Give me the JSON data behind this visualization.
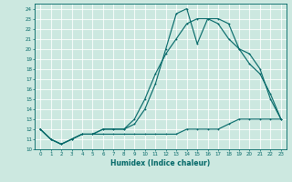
{
  "xlabel": "Humidex (Indice chaleur)",
  "ylabel": "",
  "bg_color": "#cce8e0",
  "grid_color": "#ffffff",
  "line_color": "#006666",
  "xlim": [
    -0.5,
    23.5
  ],
  "ylim": [
    10,
    24.5
  ],
  "yticks": [
    10,
    11,
    12,
    13,
    14,
    15,
    16,
    17,
    18,
    19,
    20,
    21,
    22,
    23,
    24
  ],
  "xticks": [
    0,
    1,
    2,
    3,
    4,
    5,
    6,
    7,
    8,
    9,
    10,
    11,
    12,
    13,
    14,
    15,
    16,
    17,
    18,
    19,
    20,
    21,
    22,
    23
  ],
  "series1_x": [
    0,
    1,
    2,
    3,
    4,
    5,
    6,
    7,
    8,
    9,
    10,
    11,
    12,
    13,
    14,
    15,
    16,
    17,
    18,
    19,
    20,
    21,
    22,
    23
  ],
  "series1_y": [
    12.0,
    11.0,
    10.5,
    11.0,
    11.5,
    11.5,
    11.5,
    11.5,
    11.5,
    11.5,
    11.5,
    11.5,
    11.5,
    11.5,
    12.0,
    12.0,
    12.0,
    12.0,
    12.5,
    13.0,
    13.0,
    13.0,
    13.0,
    13.0
  ],
  "series2_x": [
    0,
    1,
    2,
    3,
    4,
    5,
    6,
    7,
    8,
    9,
    10,
    11,
    12,
    13,
    14,
    15,
    16,
    17,
    18,
    19,
    20,
    21,
    22,
    23
  ],
  "series2_y": [
    12.0,
    11.0,
    10.5,
    11.0,
    11.5,
    11.5,
    12.0,
    12.0,
    12.0,
    12.5,
    14.0,
    16.5,
    20.0,
    23.5,
    24.0,
    20.5,
    23.0,
    23.0,
    22.5,
    20.0,
    19.5,
    18.0,
    15.0,
    13.0
  ],
  "series3_x": [
    0,
    1,
    2,
    3,
    4,
    5,
    6,
    7,
    8,
    9,
    10,
    11,
    12,
    13,
    14,
    15,
    16,
    17,
    18,
    19,
    20,
    21,
    22,
    23
  ],
  "series3_y": [
    12.0,
    11.0,
    10.5,
    11.0,
    11.5,
    11.5,
    12.0,
    12.0,
    12.0,
    13.0,
    15.0,
    17.5,
    19.5,
    21.0,
    22.5,
    23.0,
    23.0,
    22.5,
    21.0,
    20.0,
    18.5,
    17.5,
    15.5,
    13.0
  ],
  "tick_fontsize": 4.0,
  "xlabel_fontsize": 5.5,
  "marker_size": 2.0,
  "linewidth": 0.8
}
